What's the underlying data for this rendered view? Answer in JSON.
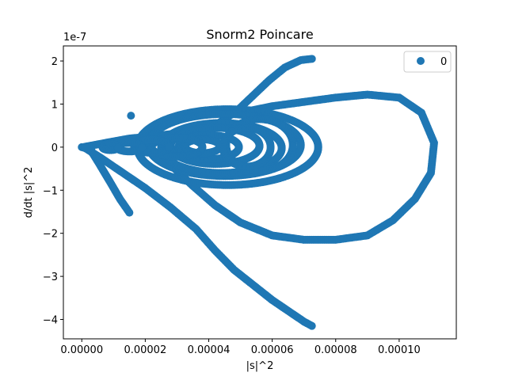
{
  "chart_data": {
    "type": "scatter",
    "title": "Snorm2 Poincare",
    "xlabel": "|s|^2",
    "ylabel": "d/dt |s|^2",
    "y_offset_text": "1e-7",
    "xlim": [
      -5.8e-06,
      0.000118
    ],
    "ylim": [
      -4.45e-07,
      2.35e-07
    ],
    "x_ticks": [
      {
        "value": 0,
        "label": "0.00000"
      },
      {
        "value": 2e-05,
        "label": "0.00002"
      },
      {
        "value": 4e-05,
        "label": "0.00004"
      },
      {
        "value": 6e-05,
        "label": "0.00006"
      },
      {
        "value": 8e-05,
        "label": "0.00008"
      },
      {
        "value": 0.0001,
        "label": "0.00010"
      }
    ],
    "y_ticks": [
      {
        "value": 2e-07,
        "label": "2"
      },
      {
        "value": 1e-07,
        "label": "1"
      },
      {
        "value": 0,
        "label": "0"
      },
      {
        "value": -1e-07,
        "label": "−1"
      },
      {
        "value": -2e-07,
        "label": "−2"
      },
      {
        "value": -3e-07,
        "label": "−3"
      },
      {
        "value": -4e-07,
        "label": "−4"
      }
    ],
    "grid": false,
    "legend": {
      "position": "top-right",
      "entries": [
        "0"
      ]
    },
    "series": [
      {
        "name": "0",
        "color": "#1f77b4",
        "curves": [
          {
            "points": [
              [
                0.0,
                0.0
              ],
              [
                1e-06,
                -2e-09
              ],
              [
                3e-06,
                -5e-09
              ]
            ]
          },
          {
            "points": [
              [
                1.5e-05,
                -1.52e-07
              ],
              [
                1.2e-05,
                -1.2e-07
              ],
              [
                9e-06,
                -8.2e-08
              ],
              [
                6e-06,
                -4.5e-08
              ],
              [
                3.5e-06,
                -1.5e-08
              ],
              [
                1.5e-06,
                0.0
              ]
            ]
          },
          {
            "points": [
              [
                1.5e-06,
                -4e-09
              ],
              [
                6e-06,
                -2.5e-08
              ],
              [
                1.2e-05,
                -5.5e-08
              ],
              [
                2e-05,
                -9.5e-08
              ],
              [
                2.8e-05,
                -1.4e-07
              ],
              [
                3.6e-05,
                -1.9e-07
              ],
              [
                4.2e-05,
                -2.4e-07
              ],
              [
                4.8e-05,
                -2.85e-07
              ],
              [
                5.4e-05,
                -3.2e-07
              ],
              [
                6e-05,
                -3.55e-07
              ],
              [
                6.6e-05,
                -3.85e-07
              ],
              [
                7e-05,
                -4.05e-07
              ],
              [
                7.25e-05,
                -4.15e-07
              ]
            ]
          },
          {
            "points": [
              [
                7.25e-05,
                2.05e-07
              ],
              [
                6.9e-05,
                2.02e-07
              ],
              [
                6.4e-05,
                1.85e-07
              ],
              [
                5.9e-05,
                1.55e-07
              ],
              [
                5.4e-05,
                1.2e-07
              ],
              [
                4.9e-05,
                8.5e-08
              ],
              [
                4.3e-05,
                5.5e-08
              ]
            ]
          },
          {
            "points": [
              [
                4.3e-05,
                5.5e-08
              ],
              [
                3.8e-05,
                4e-08
              ],
              [
                3e-05,
                3.2e-08
              ],
              [
                2.2e-05,
                2.5e-08
              ],
              [
                1.5e-05,
                2e-08
              ],
              [
                9e-06,
                1.2e-08
              ],
              [
                4e-06,
                5e-09
              ],
              [
                1e-06,
                1e-09
              ]
            ]
          },
          {
            "points": [
              [
                5e-05,
                8e-08
              ],
              [
                6e-05,
                9.5e-08
              ],
              [
                7e-05,
                1.05e-07
              ],
              [
                8e-05,
                1.15e-07
              ],
              [
                9e-05,
                1.22e-07
              ],
              [
                0.0001,
                1.15e-07
              ],
              [
                0.000107,
                8e-08
              ],
              [
                0.000111,
                1e-08
              ],
              [
                0.00011,
                -6e-08
              ],
              [
                0.000105,
                -1.2e-07
              ],
              [
                9.8e-05,
                -1.7e-07
              ],
              [
                9e-05,
                -2.05e-07
              ],
              [
                8e-05,
                -2.15e-07
              ],
              [
                7e-05,
                -2.15e-07
              ],
              [
                6e-05,
                -2.05e-07
              ],
              [
                5e-05,
                -1.75e-07
              ],
              [
                4.2e-05,
                -1.35e-07
              ],
              [
                3.5e-05,
                -9e-08
              ],
              [
                3e-05,
                -5.5e-08
              ],
              [
                2.6e-05,
                -2.5e-08
              ]
            ]
          },
          {
            "loops": [
              {
                "cx": 4.6e-05,
                "cy": 0.0,
                "rx": 2.85e-05,
                "ry": 8.8e-08
              },
              {
                "cx": 4.5e-05,
                "cy": 5e-09,
                "rx": 2.4e-05,
                "ry": 7.2e-08
              },
              {
                "cx": 4.4e-05,
                "cy": -2e-09,
                "rx": 1.9e-05,
                "ry": 5.8e-08
              },
              {
                "cx": 4.2e-05,
                "cy": 3e-09,
                "rx": 1.4e-05,
                "ry": 4.2e-08
              },
              {
                "cx": 4e-05,
                "cy": 0.0,
                "rx": 9.5e-06,
                "ry": 2.8e-08
              },
              {
                "cx": 3.8e-05,
                "cy": 2e-09,
                "rx": 5.5e-06,
                "ry": 1.6e-08
              },
              {
                "cx": 5.6e-05,
                "cy": 5e-09,
                "rx": 1.05e-05,
                "ry": 6e-08
              },
              {
                "cx": 5.2e-05,
                "cy": 0.0,
                "rx": 7.5e-06,
                "ry": 4.5e-08
              },
              {
                "cx": 3e-05,
                "cy": 0.0,
                "rx": 8e-06,
                "ry": 2.2e-08
              },
              {
                "cx": 2.2e-05,
                "cy": 2e-09,
                "rx": 5.5e-06,
                "ry": 1.5e-08
              },
              {
                "cx": 1.5e-05,
                "cy": 0.0,
                "rx": 4e-06,
                "ry": 1e-08
              },
              {
                "cx": 9e-06,
                "cy": 0.0,
                "rx": 2.5e-06,
                "ry": 7e-09
              }
            ]
          },
          {
            "points": [
              [
                1.55e-05,
                7.3e-08
              ]
            ]
          }
        ]
      }
    ]
  }
}
